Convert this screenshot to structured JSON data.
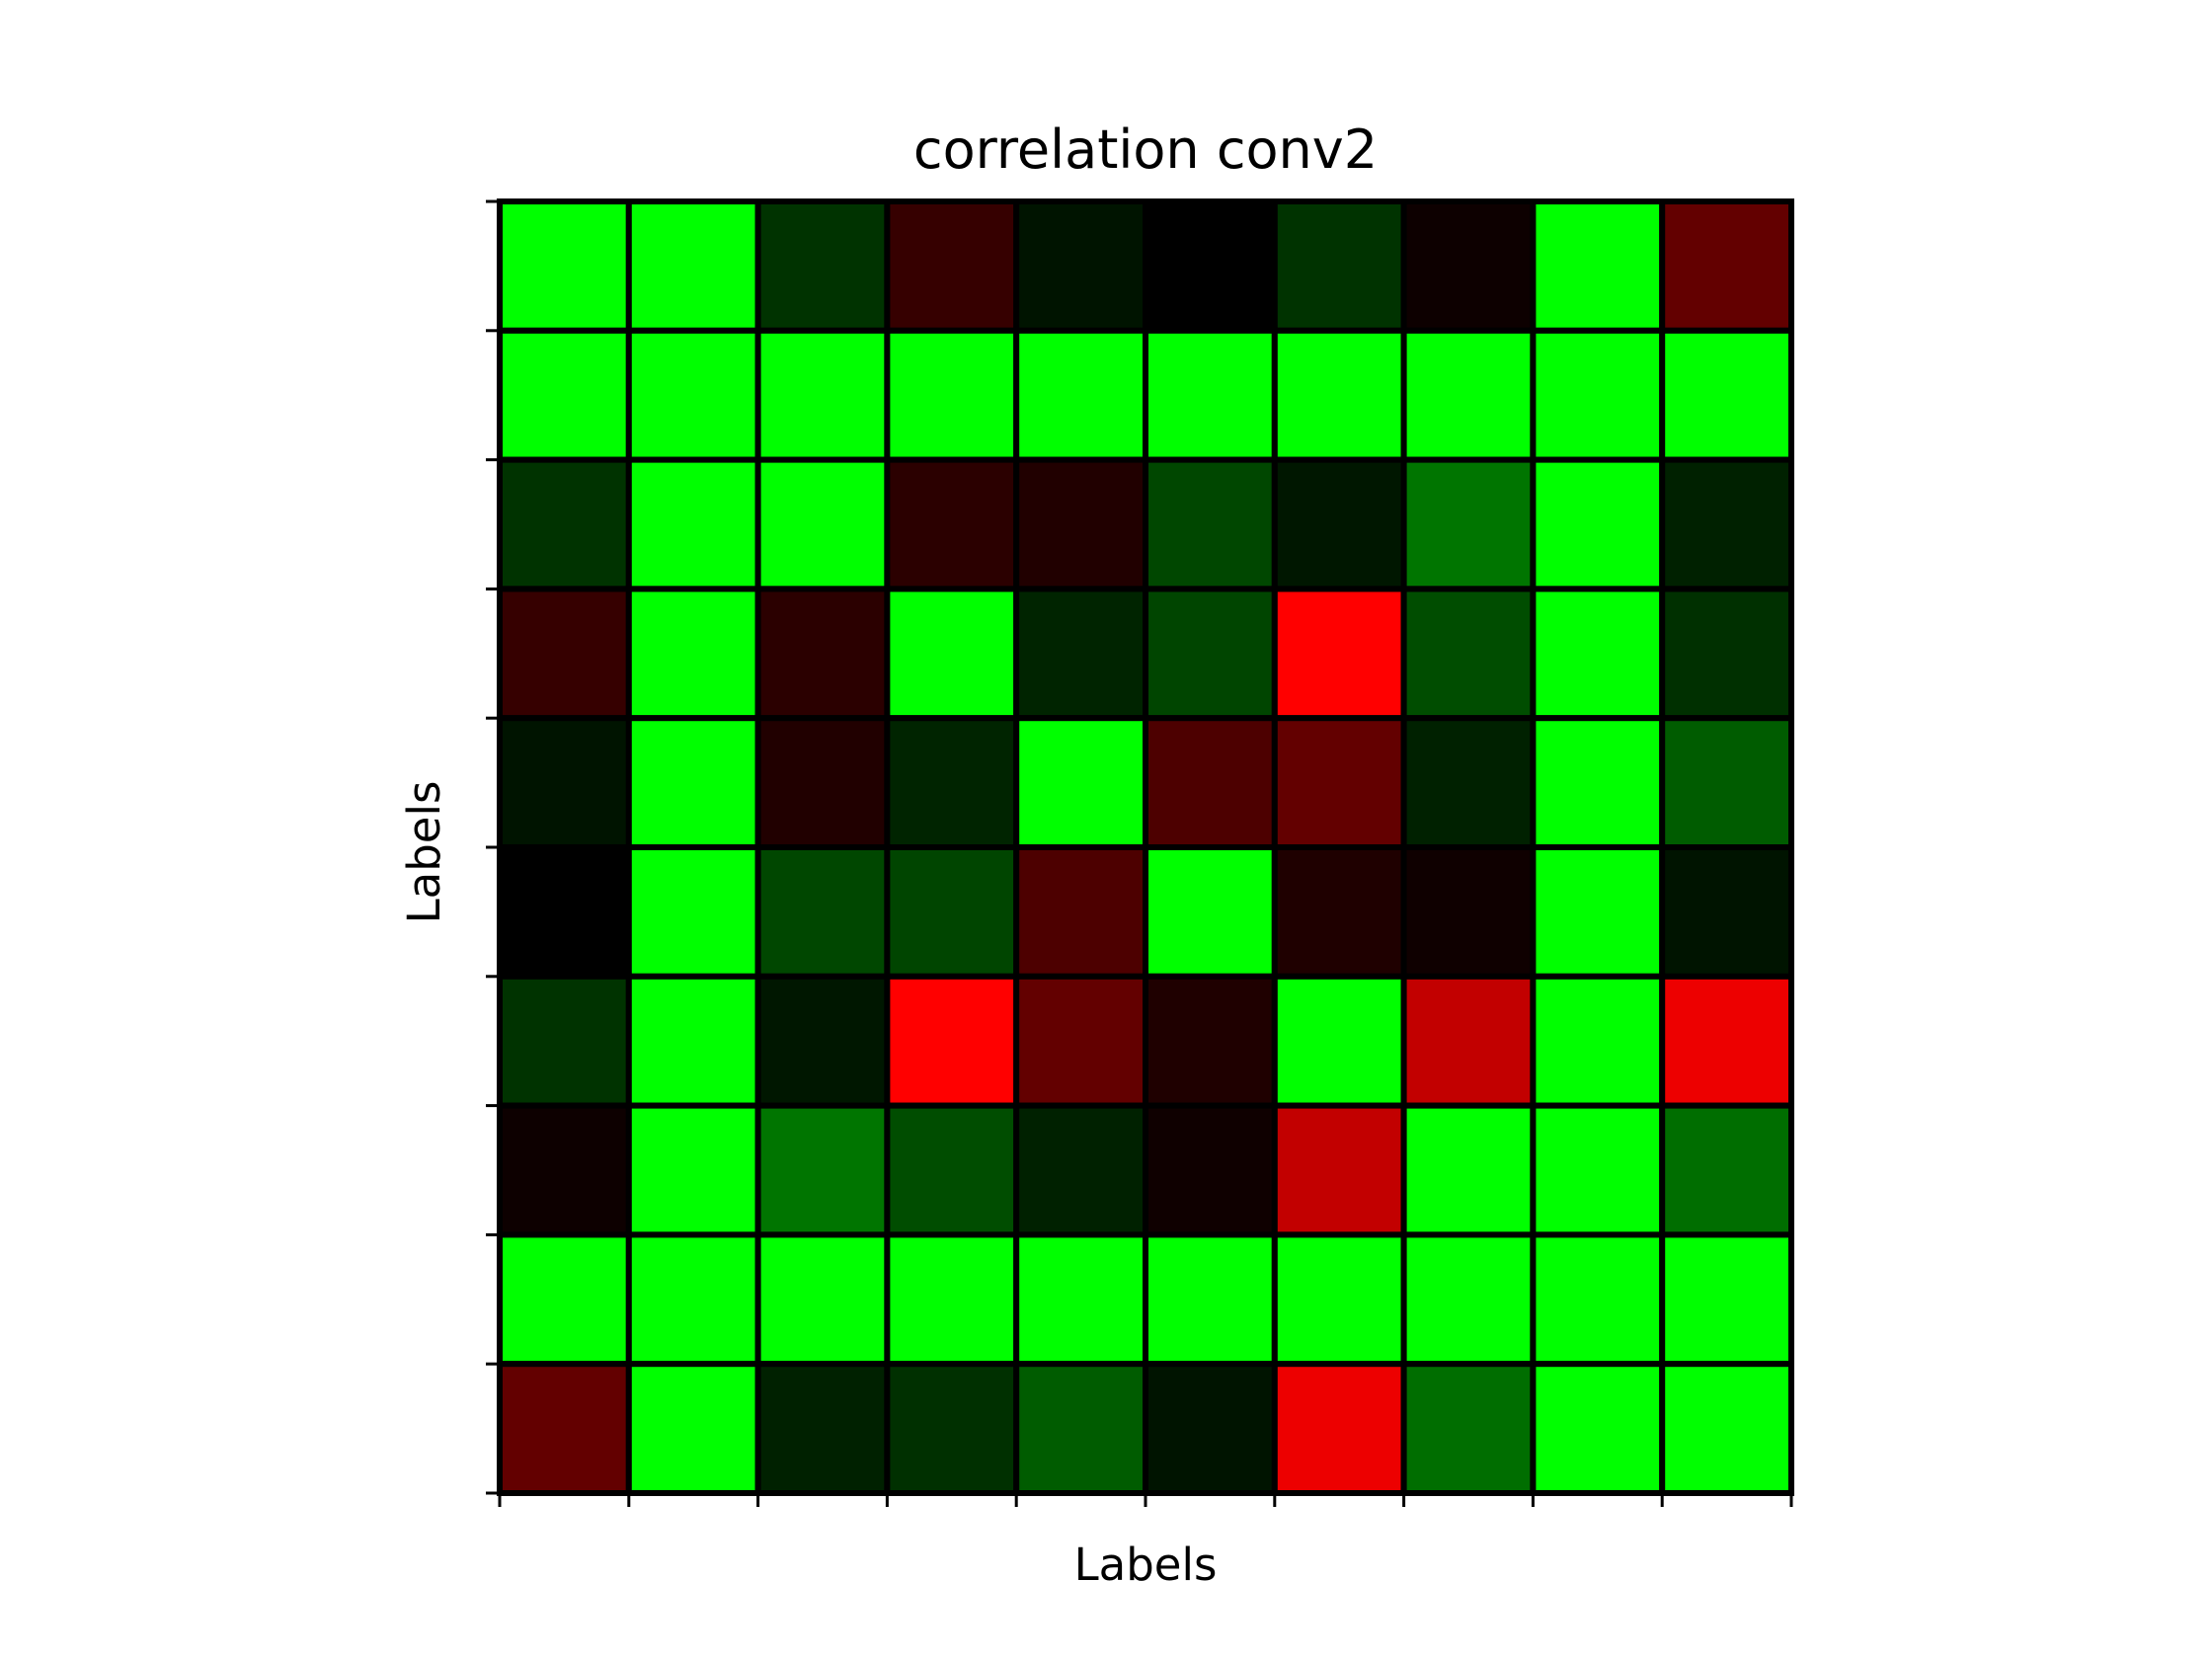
{
  "chart_data": {
    "type": "heatmap",
    "title": "correlation conv2",
    "xlabel": "Labels",
    "ylabel": "Labels",
    "rows": 10,
    "cols": 10,
    "value_range": [
      -1,
      1
    ],
    "colormap": {
      "negative": "#ff0000",
      "zero": "#000000",
      "positive": "#00ff00"
    },
    "grid": true,
    "tick_labels": false,
    "values": [
      [
        1.0,
        1.0,
        0.2,
        -0.21,
        0.08,
        0.0,
        0.2,
        -0.05,
        1.0,
        -0.39
      ],
      [
        1.0,
        1.0,
        1.0,
        1.0,
        1.0,
        1.0,
        1.0,
        1.0,
        1.0,
        1.0
      ],
      [
        0.2,
        1.0,
        1.0,
        -0.17,
        -0.13,
        0.28,
        0.09,
        0.46,
        1.0,
        0.13
      ],
      [
        -0.21,
        1.0,
        -0.17,
        1.0,
        0.14,
        0.27,
        -1.0,
        0.3,
        1.0,
        0.19
      ],
      [
        0.08,
        1.0,
        -0.13,
        0.14,
        1.0,
        -0.3,
        -0.39,
        0.13,
        1.0,
        0.36
      ],
      [
        0.0,
        1.0,
        0.28,
        0.27,
        -0.3,
        1.0,
        -0.12,
        -0.06,
        1.0,
        0.08
      ],
      [
        0.2,
        1.0,
        0.09,
        -1.0,
        -0.39,
        -0.12,
        1.0,
        -0.76,
        1.0,
        -0.93
      ],
      [
        -0.05,
        1.0,
        0.46,
        0.3,
        0.13,
        -0.06,
        -0.76,
        1.0,
        1.0,
        0.43
      ],
      [
        1.0,
        1.0,
        1.0,
        1.0,
        1.0,
        1.0,
        1.0,
        1.0,
        1.0,
        1.0
      ],
      [
        -0.39,
        1.0,
        0.13,
        0.19,
        0.36,
        0.08,
        -0.93,
        0.43,
        1.0,
        1.0
      ]
    ]
  }
}
